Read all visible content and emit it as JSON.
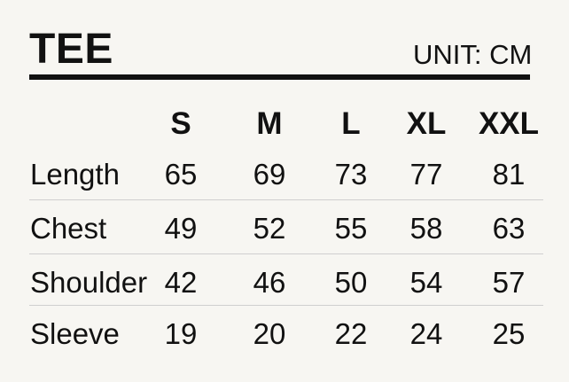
{
  "title": "TEE",
  "unit": "UNIT: CM",
  "sizes": [
    "S",
    "M",
    "L",
    "XL",
    "XXL"
  ],
  "rows": [
    {
      "label": "Length",
      "values": [
        "65",
        "69",
        "73",
        "77",
        "81"
      ]
    },
    {
      "label": "Chest",
      "values": [
        "49",
        "52",
        "55",
        "58",
        "63"
      ]
    },
    {
      "label": "Shoulder",
      "values": [
        "42",
        "46",
        "50",
        "54",
        "57"
      ]
    },
    {
      "label": "Sleeve",
      "values": [
        "19",
        "20",
        "22",
        "24",
        "25"
      ]
    }
  ]
}
